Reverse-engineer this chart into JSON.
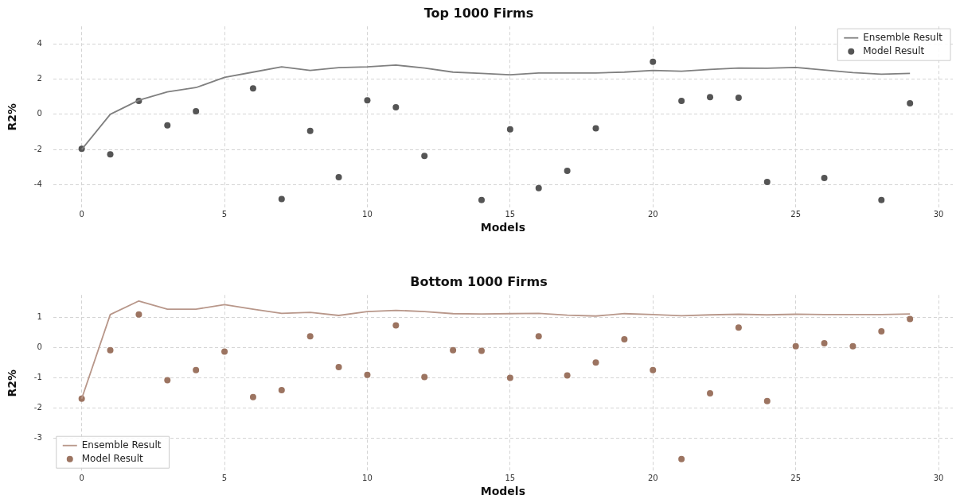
{
  "chart_data": [
    {
      "type": "line",
      "title": "Top 1000 Firms",
      "xlabel": "Models",
      "ylabel": "R2%",
      "x": [
        0,
        1,
        2,
        3,
        4,
        5,
        6,
        7,
        8,
        9,
        10,
        11,
        12,
        13,
        14,
        15,
        16,
        17,
        18,
        19,
        20,
        21,
        22,
        23,
        24,
        25,
        26,
        27,
        28,
        29
      ],
      "xlim": [
        -1,
        30.5
      ],
      "xticks": [
        0,
        5,
        10,
        15,
        20,
        25,
        30
      ],
      "ylim": [
        -5.3,
        5
      ],
      "yticks": [
        -4,
        -2,
        0,
        2,
        4
      ],
      "grid": true,
      "legend": "top right",
      "series": [
        {
          "name": "Ensemble Result",
          "type": "line",
          "marker": "none",
          "color": "#808080",
          "values": [
            -2,
            0,
            0.8,
            1.28,
            1.52,
            2.1,
            2.4,
            2.7,
            2.5,
            2.65,
            2.7,
            2.8,
            2.63,
            2.4,
            2.33,
            2.25,
            2.35,
            2.35,
            2.35,
            2.4,
            2.5,
            2.45,
            2.55,
            2.63,
            2.62,
            2.67,
            2.52,
            2.37,
            2.28,
            2.33
          ]
        },
        {
          "name": "Model Result",
          "type": "scatter",
          "marker": "circle",
          "color": "#555555",
          "values": [
            -1.96,
            -2.28,
            0.76,
            -0.63,
            0.18,
            null,
            1.47,
            -4.82,
            -0.94,
            -3.57,
            0.8,
            0.4,
            -2.37,
            null,
            -4.87,
            -0.85,
            -4.2,
            -3.21,
            -0.8,
            null,
            2.99,
            0.76,
            0.98,
            0.94,
            -3.84,
            null,
            -3.62,
            null,
            -4.87,
            0.63
          ]
        }
      ]
    },
    {
      "type": "line",
      "title": "Bottom 1000 Firms",
      "xlabel": "Models",
      "ylabel": "R2%",
      "x": [
        0,
        1,
        2,
        3,
        4,
        5,
        6,
        7,
        8,
        9,
        10,
        11,
        12,
        13,
        14,
        15,
        16,
        17,
        18,
        19,
        20,
        21,
        22,
        23,
        24,
        25,
        26,
        27,
        28,
        29
      ],
      "xlim": [
        -1,
        30.5
      ],
      "xticks": [
        0,
        5,
        10,
        15,
        20,
        25,
        30
      ],
      "ylim": [
        -4.1,
        1.75
      ],
      "yticks": [
        -3,
        -2,
        -1,
        0,
        1
      ],
      "grid": true,
      "legend": "bottom left",
      "series": [
        {
          "name": "Ensemble Result",
          "type": "line",
          "marker": "none",
          "color": "#b8978a",
          "values": [
            -1.69,
            1.1,
            1.55,
            1.28,
            1.28,
            1.43,
            1.28,
            1.14,
            1.17,
            1.07,
            1.2,
            1.24,
            1.2,
            1.13,
            1.12,
            1.13,
            1.14,
            1.08,
            1.05,
            1.13,
            1.1,
            1.06,
            1.09,
            1.11,
            1.09,
            1.11,
            1.1,
            1.1,
            1.1,
            1.12
          ]
        },
        {
          "name": "Model Result",
          "type": "scatter",
          "marker": "circle",
          "color": "#9c7461",
          "values": [
            -1.69,
            -0.08,
            1.1,
            -1.08,
            -0.74,
            -0.13,
            -1.64,
            -1.41,
            0.38,
            -0.64,
            -0.9,
            0.74,
            -0.97,
            -0.08,
            -0.1,
            -1.0,
            0.38,
            -0.92,
            -0.49,
            0.28,
            -0.74,
            -3.69,
            -1.51,
            0.67,
            -1.77,
            0.05,
            0.15,
            0.05,
            0.54,
            0.95
          ]
        }
      ]
    }
  ]
}
